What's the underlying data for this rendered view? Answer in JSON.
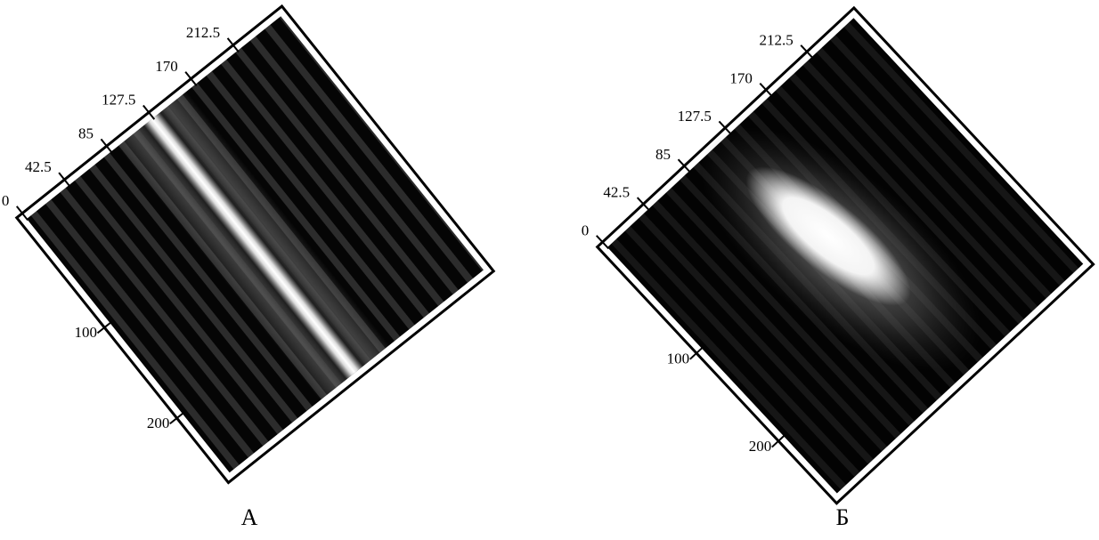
{
  "panels": [
    {
      "caption": "А",
      "x_axis": {
        "range": [
          0,
          256
        ],
        "ticks": [
          0,
          42.5,
          85,
          127.5,
          170,
          212.5
        ]
      },
      "y_axis": {
        "range": [
          -15,
          265
        ],
        "ticks": [
          100,
          200
        ]
      }
    },
    {
      "caption": "Б",
      "x_axis": {
        "range": [
          0,
          256
        ],
        "ticks": [
          0,
          42.5,
          85,
          127.5,
          170,
          212.5
        ]
      },
      "y_axis": {
        "range": [
          -15,
          265
        ],
        "ticks": [
          100,
          200
        ]
      }
    }
  ]
}
